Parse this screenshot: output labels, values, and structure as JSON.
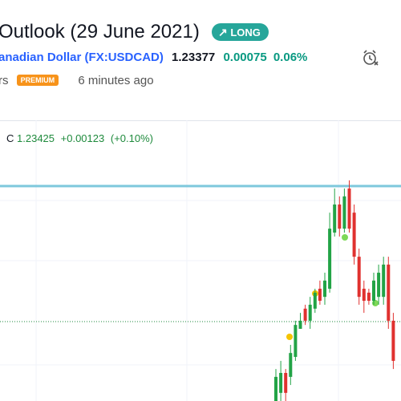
{
  "header": {
    "title": "Outlook (29 June 2021)",
    "badge": "LONG",
    "symbol_name": "anadian Dollar",
    "symbol_code": "(FX:USDCAD)",
    "price": "1.23377",
    "change": "0.00075",
    "change_pct": "0.06%",
    "author_tail": "rs",
    "author_badge": "PREMIUM",
    "time": "6 minutes ago"
  },
  "legend": {
    "close_label": "C",
    "close": "1.23425",
    "change": "+0.00123",
    "change_pct": "(+0.10%)"
  },
  "chart_data": {
    "type": "candlestick",
    "ylim": [
      1.23,
      1.24
    ],
    "up_color": "#22a346",
    "down_color": "#e0312f",
    "open": [
      1.23,
      1.23029,
      1.231,
      1.23086,
      1.23157,
      1.23257,
      1.23329,
      1.23286,
      1.23329,
      1.234,
      1.23371,
      1.234,
      1.236,
      1.237,
      1.23614,
      1.23757,
      1.23671,
      1.23514,
      1.234,
      1.23386,
      1.23357,
      1.23371,
      1.23371,
      1.23486,
      1.23286
    ],
    "high": [
      1.23114,
      1.23143,
      1.23114,
      1.232,
      1.23286,
      1.23314,
      1.23343,
      1.23371,
      1.234,
      1.23429,
      1.23457,
      1.23671,
      1.23757,
      1.23729,
      1.23757,
      1.23786,
      1.237,
      1.23543,
      1.23429,
      1.234,
      1.23457,
      1.23486,
      1.23514,
      1.23514,
      1.23314
    ],
    "low": [
      1.23,
      1.23,
      1.23,
      1.23057,
      1.23143,
      1.23257,
      1.23271,
      1.23257,
      1.23314,
      1.23343,
      1.23343,
      1.23386,
      1.23586,
      1.23586,
      1.236,
      1.236,
      1.23486,
      1.23343,
      1.23314,
      1.23343,
      1.23343,
      1.23343,
      1.23343,
      1.23257,
      1.23114
    ],
    "close": [
      1.23086,
      1.231,
      1.23029,
      1.23171,
      1.23271,
      1.23286,
      1.23286,
      1.23343,
      1.23386,
      1.23357,
      1.23429,
      1.23614,
      1.237,
      1.23614,
      1.23729,
      1.23614,
      1.23514,
      1.23371,
      1.23357,
      1.23357,
      1.23429,
      1.23457,
      1.23486,
      1.23286,
      1.23143
    ]
  }
}
